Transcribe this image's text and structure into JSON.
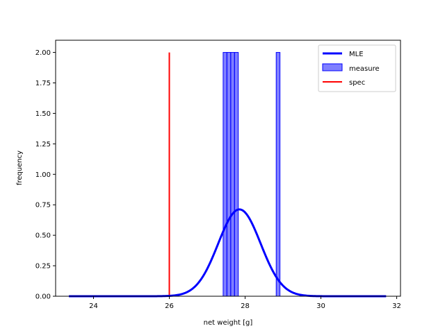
{
  "chart_data": {
    "type": "histogram+line",
    "title": "",
    "xlabel": "net weight [g]",
    "ylabel": "frequency",
    "xlim": [
      23.0,
      32.1
    ],
    "ylim": [
      0.0,
      2.1
    ],
    "xticks": [
      24,
      26,
      28,
      30,
      32
    ],
    "xtick_labels": [
      "24",
      "26",
      "28",
      "30",
      "32"
    ],
    "yticks": [
      0.0,
      0.25,
      0.5,
      0.75,
      1.0,
      1.25,
      1.5,
      1.75,
      2.0
    ],
    "ytick_labels": [
      "0.00",
      "0.25",
      "0.50",
      "0.75",
      "1.00",
      "1.25",
      "1.50",
      "1.75",
      "2.00"
    ],
    "grid": false,
    "legend_position": "top-right",
    "legend": [
      "MLE",
      "measure",
      "spec"
    ],
    "series": [
      {
        "name": "MLE",
        "kind": "normal-pdf-line",
        "color": "#0000ff",
        "mean": 27.85,
        "std": 0.56,
        "x_range": [
          23.35,
          31.72
        ]
      },
      {
        "name": "measure",
        "kind": "histogram",
        "color": "#0000ff",
        "opacity": 0.5,
        "bins": [
          {
            "x0": 27.42,
            "x1": 27.52,
            "value": 2
          },
          {
            "x0": 27.52,
            "x1": 27.62,
            "value": 2
          },
          {
            "x0": 27.62,
            "x1": 27.72,
            "value": 2
          },
          {
            "x0": 27.72,
            "x1": 27.82,
            "value": 2
          },
          {
            "x0": 28.82,
            "x1": 28.92,
            "value": 2
          }
        ]
      },
      {
        "name": "spec",
        "kind": "vertical-line",
        "color": "#ff0000",
        "x": 26.0,
        "y_range": [
          0,
          2
        ]
      }
    ]
  }
}
